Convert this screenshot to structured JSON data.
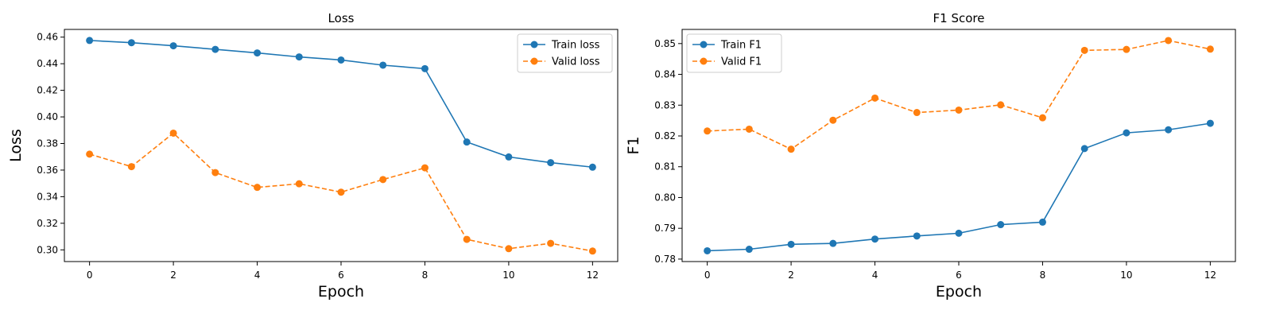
{
  "chart_data": [
    {
      "type": "line",
      "title": "Loss",
      "xlabel": "Epoch",
      "ylabel": "Loss",
      "x": [
        0,
        1,
        2,
        3,
        4,
        5,
        6,
        7,
        8,
        9,
        10,
        11,
        12
      ],
      "xticks": [
        0,
        2,
        4,
        6,
        8,
        10,
        12
      ],
      "xlim": [
        -0.6,
        12.6
      ],
      "yticks": [
        0.3,
        0.32,
        0.34,
        0.36,
        0.38,
        0.4,
        0.42,
        0.44,
        0.46
      ],
      "ylim": [
        0.2912,
        0.4658
      ],
      "ytick_decimals": 2,
      "grid": false,
      "legend_position": "top-right",
      "series": [
        {
          "name": "Train loss",
          "color": "#1f77b4",
          "linestyle": "solid",
          "marker": "circle",
          "values": [
            0.4575,
            0.4558,
            0.4535,
            0.4508,
            0.4481,
            0.4451,
            0.4428,
            0.4389,
            0.4363,
            0.3811,
            0.3699,
            0.3656,
            0.3622
          ]
        },
        {
          "name": "Valid loss",
          "color": "#ff7f0e",
          "linestyle": "dashed",
          "marker": "circle",
          "values": [
            0.372,
            0.3626,
            0.3878,
            0.3581,
            0.347,
            0.3497,
            0.3434,
            0.3529,
            0.3617,
            0.3079,
            0.3009,
            0.3049,
            0.2991
          ]
        }
      ]
    },
    {
      "type": "line",
      "title": "F1 Score",
      "xlabel": "Epoch",
      "ylabel": "F1",
      "x": [
        0,
        1,
        2,
        3,
        4,
        5,
        6,
        7,
        8,
        9,
        10,
        11,
        12
      ],
      "xticks": [
        0,
        2,
        4,
        6,
        8,
        10,
        12
      ],
      "xlim": [
        -0.6,
        12.6
      ],
      "yticks": [
        0.78,
        0.79,
        0.8,
        0.81,
        0.82,
        0.83,
        0.84,
        0.85
      ],
      "ylim": [
        0.7792,
        0.8546
      ],
      "ytick_decimals": 2,
      "grid": false,
      "legend_position": "top-left",
      "series": [
        {
          "name": "Train F1",
          "color": "#1f77b4",
          "linestyle": "solid",
          "marker": "circle",
          "values": [
            0.7827,
            0.7832,
            0.7848,
            0.7851,
            0.7865,
            0.7875,
            0.7884,
            0.7912,
            0.792,
            0.8159,
            0.821,
            0.822,
            0.8241
          ]
        },
        {
          "name": "Valid F1",
          "color": "#ff7f0e",
          "linestyle": "dashed",
          "marker": "circle",
          "values": [
            0.8216,
            0.8222,
            0.8157,
            0.8251,
            0.8323,
            0.8276,
            0.8284,
            0.8301,
            0.8259,
            0.8478,
            0.8481,
            0.851,
            0.8482
          ]
        }
      ]
    }
  ]
}
